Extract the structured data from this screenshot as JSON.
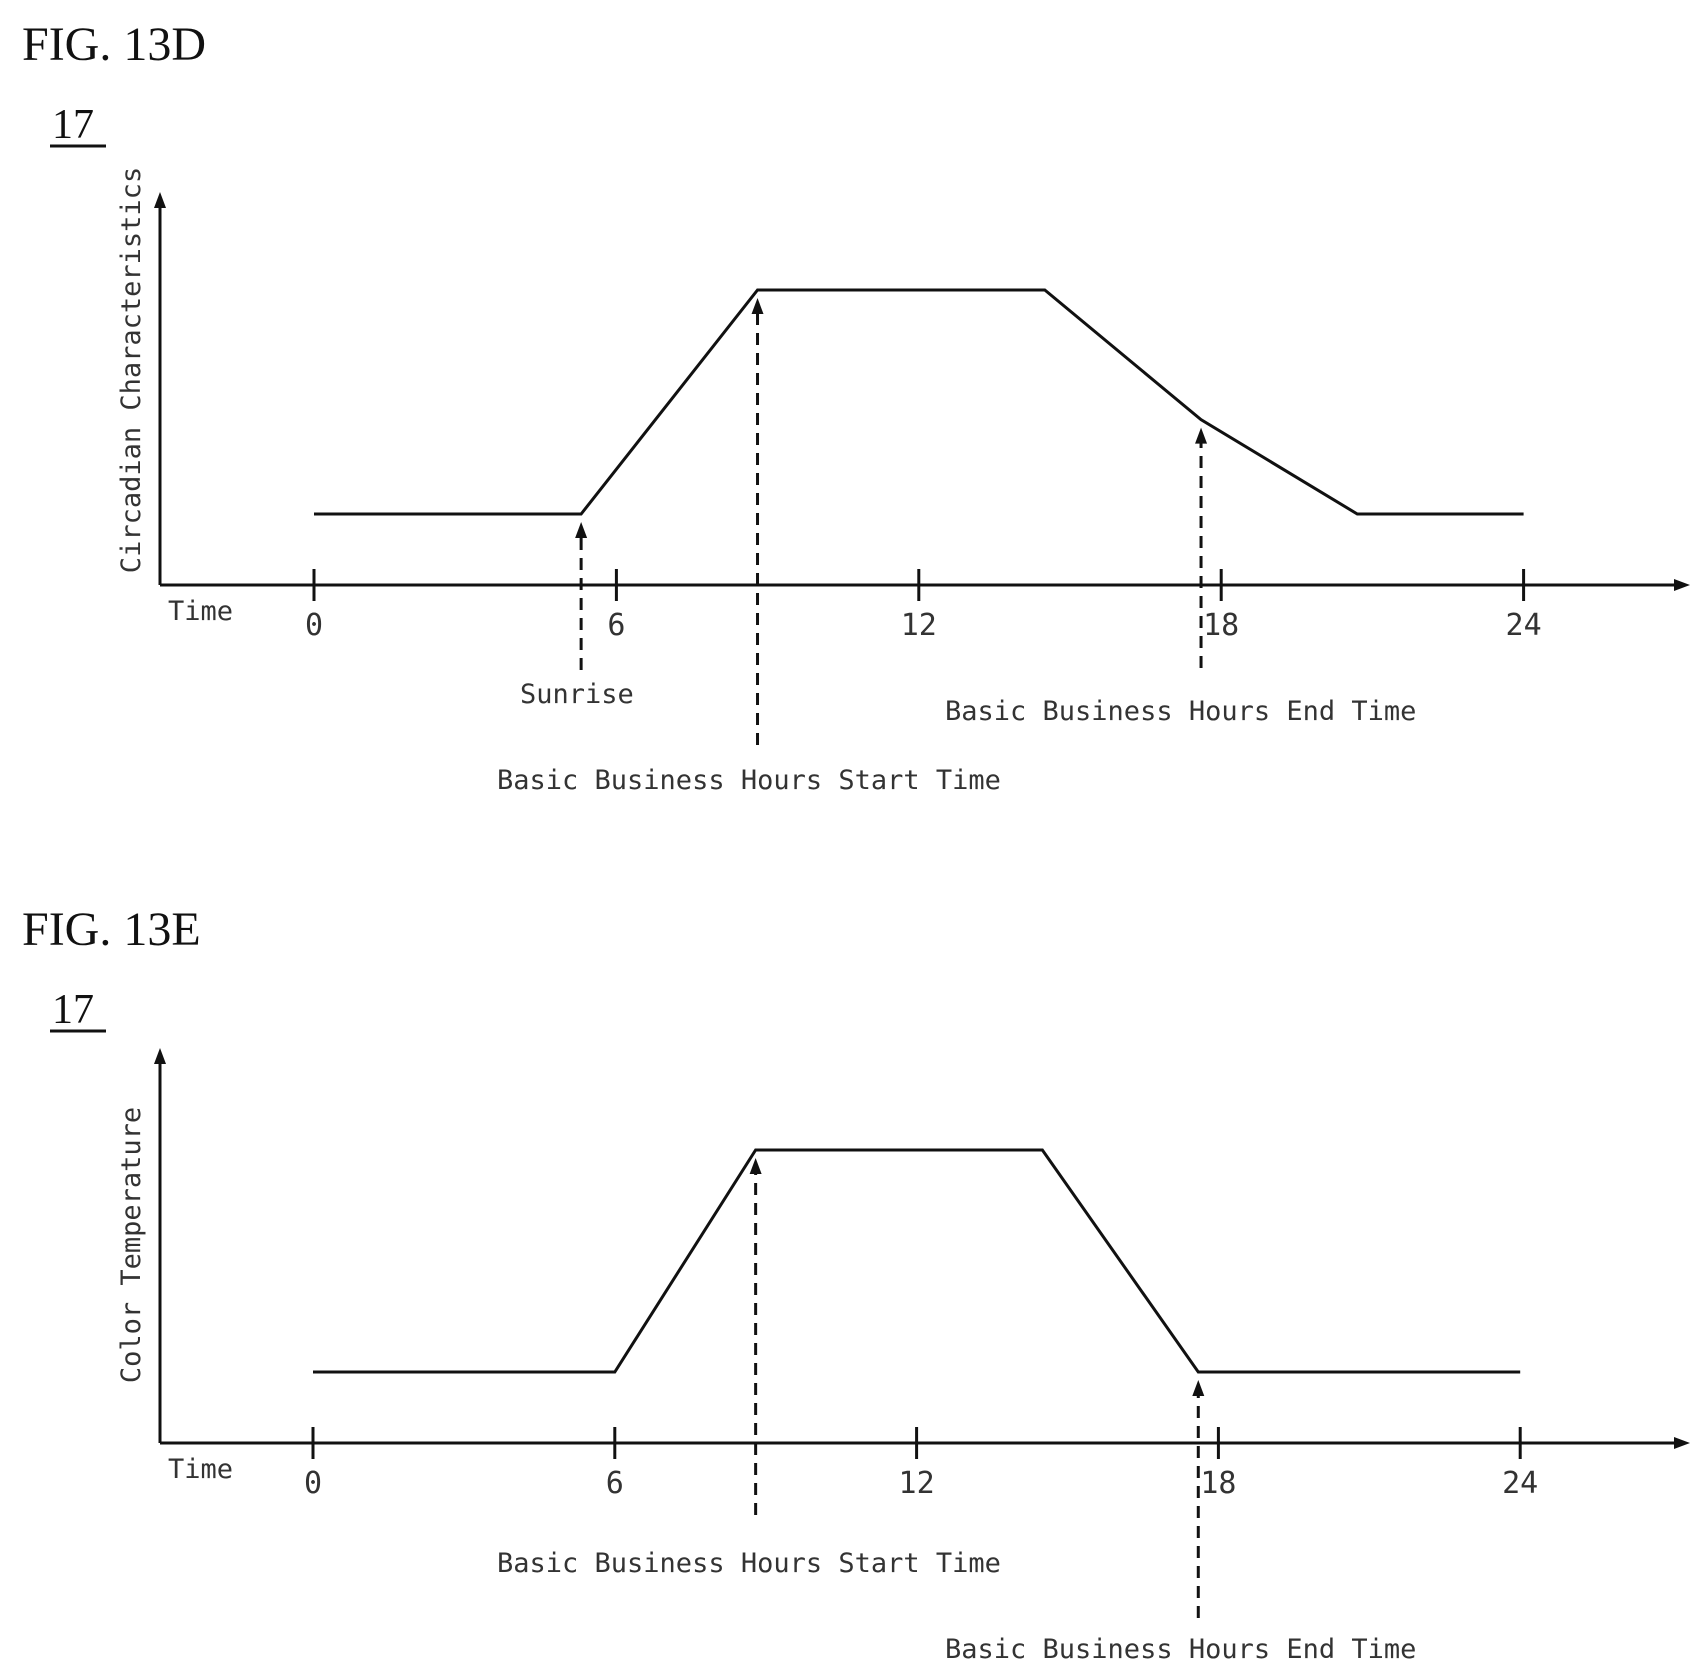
{
  "chart_data": [
    {
      "type": "line",
      "figure_label": "FIG. 13D",
      "reference_numeral": "17",
      "ylabel": "Circadian Characteristics",
      "xlabel": "Time",
      "x_ticks": [
        "0",
        "6",
        "12",
        "18",
        "24"
      ],
      "xlim": [
        0,
        27
      ],
      "ylim": [
        0,
        1
      ],
      "series": [
        {
          "x": [
            0,
            5.3,
            8.8,
            14.5,
            17.6,
            20.7,
            24
          ],
          "y": [
            0.24,
            0.24,
            1.0,
            1.0,
            0.56,
            0.24,
            0.24
          ]
        }
      ],
      "annotations": [
        {
          "label": "Sunrise",
          "x": 5.3
        },
        {
          "label": "Basic Business Hours Start Time",
          "x": 8.8
        },
        {
          "label": "Basic Business Hours End Time",
          "x": 17.6
        }
      ]
    },
    {
      "type": "line",
      "figure_label": "FIG. 13E",
      "reference_numeral": "17",
      "ylabel": "Color Temperature",
      "xlabel": "Time",
      "x_ticks": [
        "0",
        "6",
        "12",
        "18",
        "24"
      ],
      "xlim": [
        0,
        27
      ],
      "ylim": [
        0,
        1
      ],
      "series": [
        {
          "x": [
            0,
            6,
            8.8,
            14.5,
            17.6,
            24
          ],
          "y": [
            0.24,
            0.24,
            1.0,
            1.0,
            0.24,
            0.24
          ]
        }
      ],
      "annotations": [
        {
          "label": "Basic Business Hours Start Time",
          "x": 8.8
        },
        {
          "label": "Basic Business Hours End Time",
          "x": 17.6
        }
      ]
    }
  ]
}
